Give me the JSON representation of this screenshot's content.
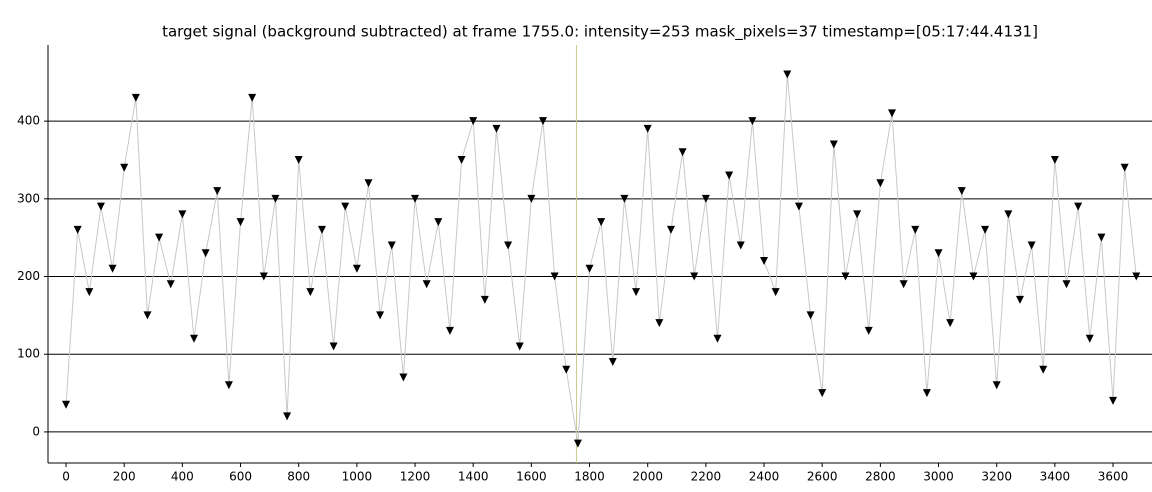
{
  "chart_data": {
    "type": "line",
    "title": "target signal (background subtracted) at frame 1755.0: intensity=253 mask_pixels=37 timestamp=[05:17:44.4131]",
    "x": [
      0,
      40,
      80,
      120,
      160,
      200,
      240,
      280,
      320,
      360,
      400,
      440,
      480,
      520,
      560,
      600,
      640,
      680,
      720,
      760,
      800,
      840,
      880,
      920,
      960,
      1000,
      1040,
      1080,
      1120,
      1160,
      1200,
      1240,
      1280,
      1320,
      1360,
      1400,
      1440,
      1480,
      1520,
      1560,
      1600,
      1640,
      1680,
      1720,
      1760,
      1800,
      1840,
      1880,
      1920,
      1960,
      2000,
      2040,
      2080,
      2120,
      2160,
      2200,
      2240,
      2280,
      2320,
      2360,
      2400,
      2440,
      2480,
      2520,
      2560,
      2600,
      2640,
      2680,
      2720,
      2760,
      2800,
      2840,
      2880,
      2920,
      2960,
      3000,
      3040,
      3080,
      3120,
      3160,
      3200,
      3240,
      3280,
      3320,
      3360,
      3400,
      3440,
      3480,
      3520,
      3560,
      3600,
      3640,
      3680
    ],
    "series": [
      {
        "color": "#000000",
        "line_color": "#c8c8c8",
        "values": [
          35,
          260,
          180,
          290,
          210,
          340,
          430,
          150,
          250,
          190,
          280,
          120,
          230,
          310,
          60,
          270,
          430,
          200,
          300,
          20,
          350,
          180,
          260,
          110,
          290,
          210,
          320,
          150,
          240,
          70,
          300,
          190,
          270,
          130,
          350,
          400,
          170,
          390,
          240,
          110,
          300,
          400,
          200,
          80,
          -15,
          210,
          270,
          90,
          300,
          180,
          390,
          140,
          260,
          360,
          200,
          300,
          120,
          330,
          240,
          400,
          220,
          180,
          460,
          290,
          150,
          50,
          370,
          200,
          280,
          130,
          320,
          410,
          190,
          260,
          50,
          230,
          140,
          310,
          200,
          260,
          60,
          280,
          170,
          240,
          80,
          350,
          190,
          290,
          120,
          250,
          40,
          340,
          200
        ]
      }
    ],
    "cursor": 1755,
    "cursor_color": "#c8c88c",
    "xlim": [
      -62,
      3734
    ],
    "ylim": [
      -40,
      498
    ],
    "xticks": [
      0,
      200,
      400,
      600,
      800,
      1000,
      1200,
      1400,
      1600,
      1800,
      2000,
      2200,
      2400,
      2600,
      2800,
      3000,
      3200,
      3400,
      3600
    ],
    "yticks": [
      0,
      100,
      200,
      300,
      400
    ],
    "grid": true
  }
}
